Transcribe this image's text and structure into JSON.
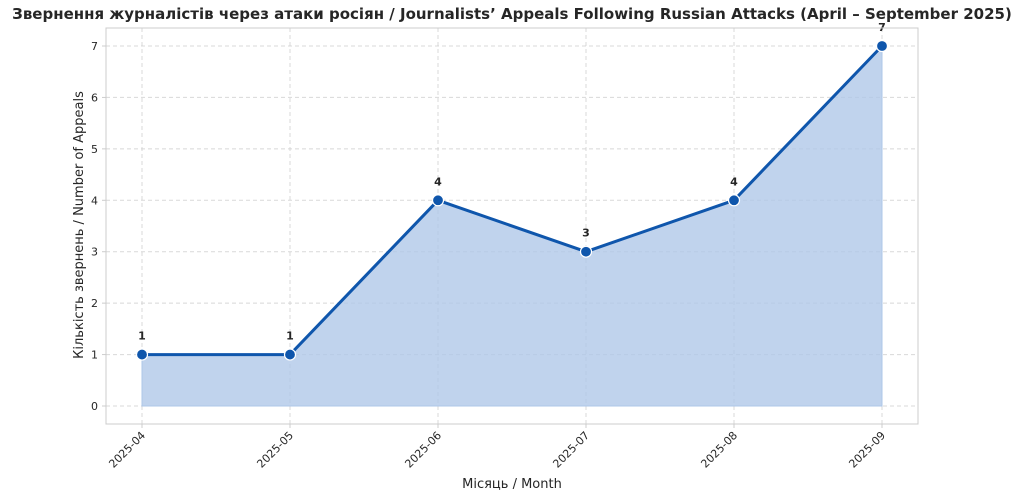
{
  "chart_data": {
    "type": "line",
    "title": "Звернення журналістів через атаки росіян / Journalists’ Appeals Following Russian Attacks (April – September 2025)",
    "xlabel": "Місяць / Month",
    "ylabel": "Кількість звернень / Number of Appeals",
    "categories": [
      "2025-04",
      "2025-05",
      "2025-06",
      "2025-07",
      "2025-08",
      "2025-09"
    ],
    "series": [
      {
        "values": [
          1,
          1,
          4,
          3,
          4,
          7
        ]
      }
    ],
    "data_labels": [
      "1",
      "1",
      "4",
      "3",
      "4",
      "7"
    ],
    "ylim": [
      -0.35,
      7.35
    ],
    "yticks": [
      0,
      1,
      2,
      3,
      4,
      5,
      6,
      7
    ],
    "grid": true,
    "area_fill": true,
    "colors": {
      "line": "#0f56ac",
      "marker": "#0f56ac",
      "marker_edge": "#ffffff",
      "fill": "#aec7e8"
    }
  }
}
